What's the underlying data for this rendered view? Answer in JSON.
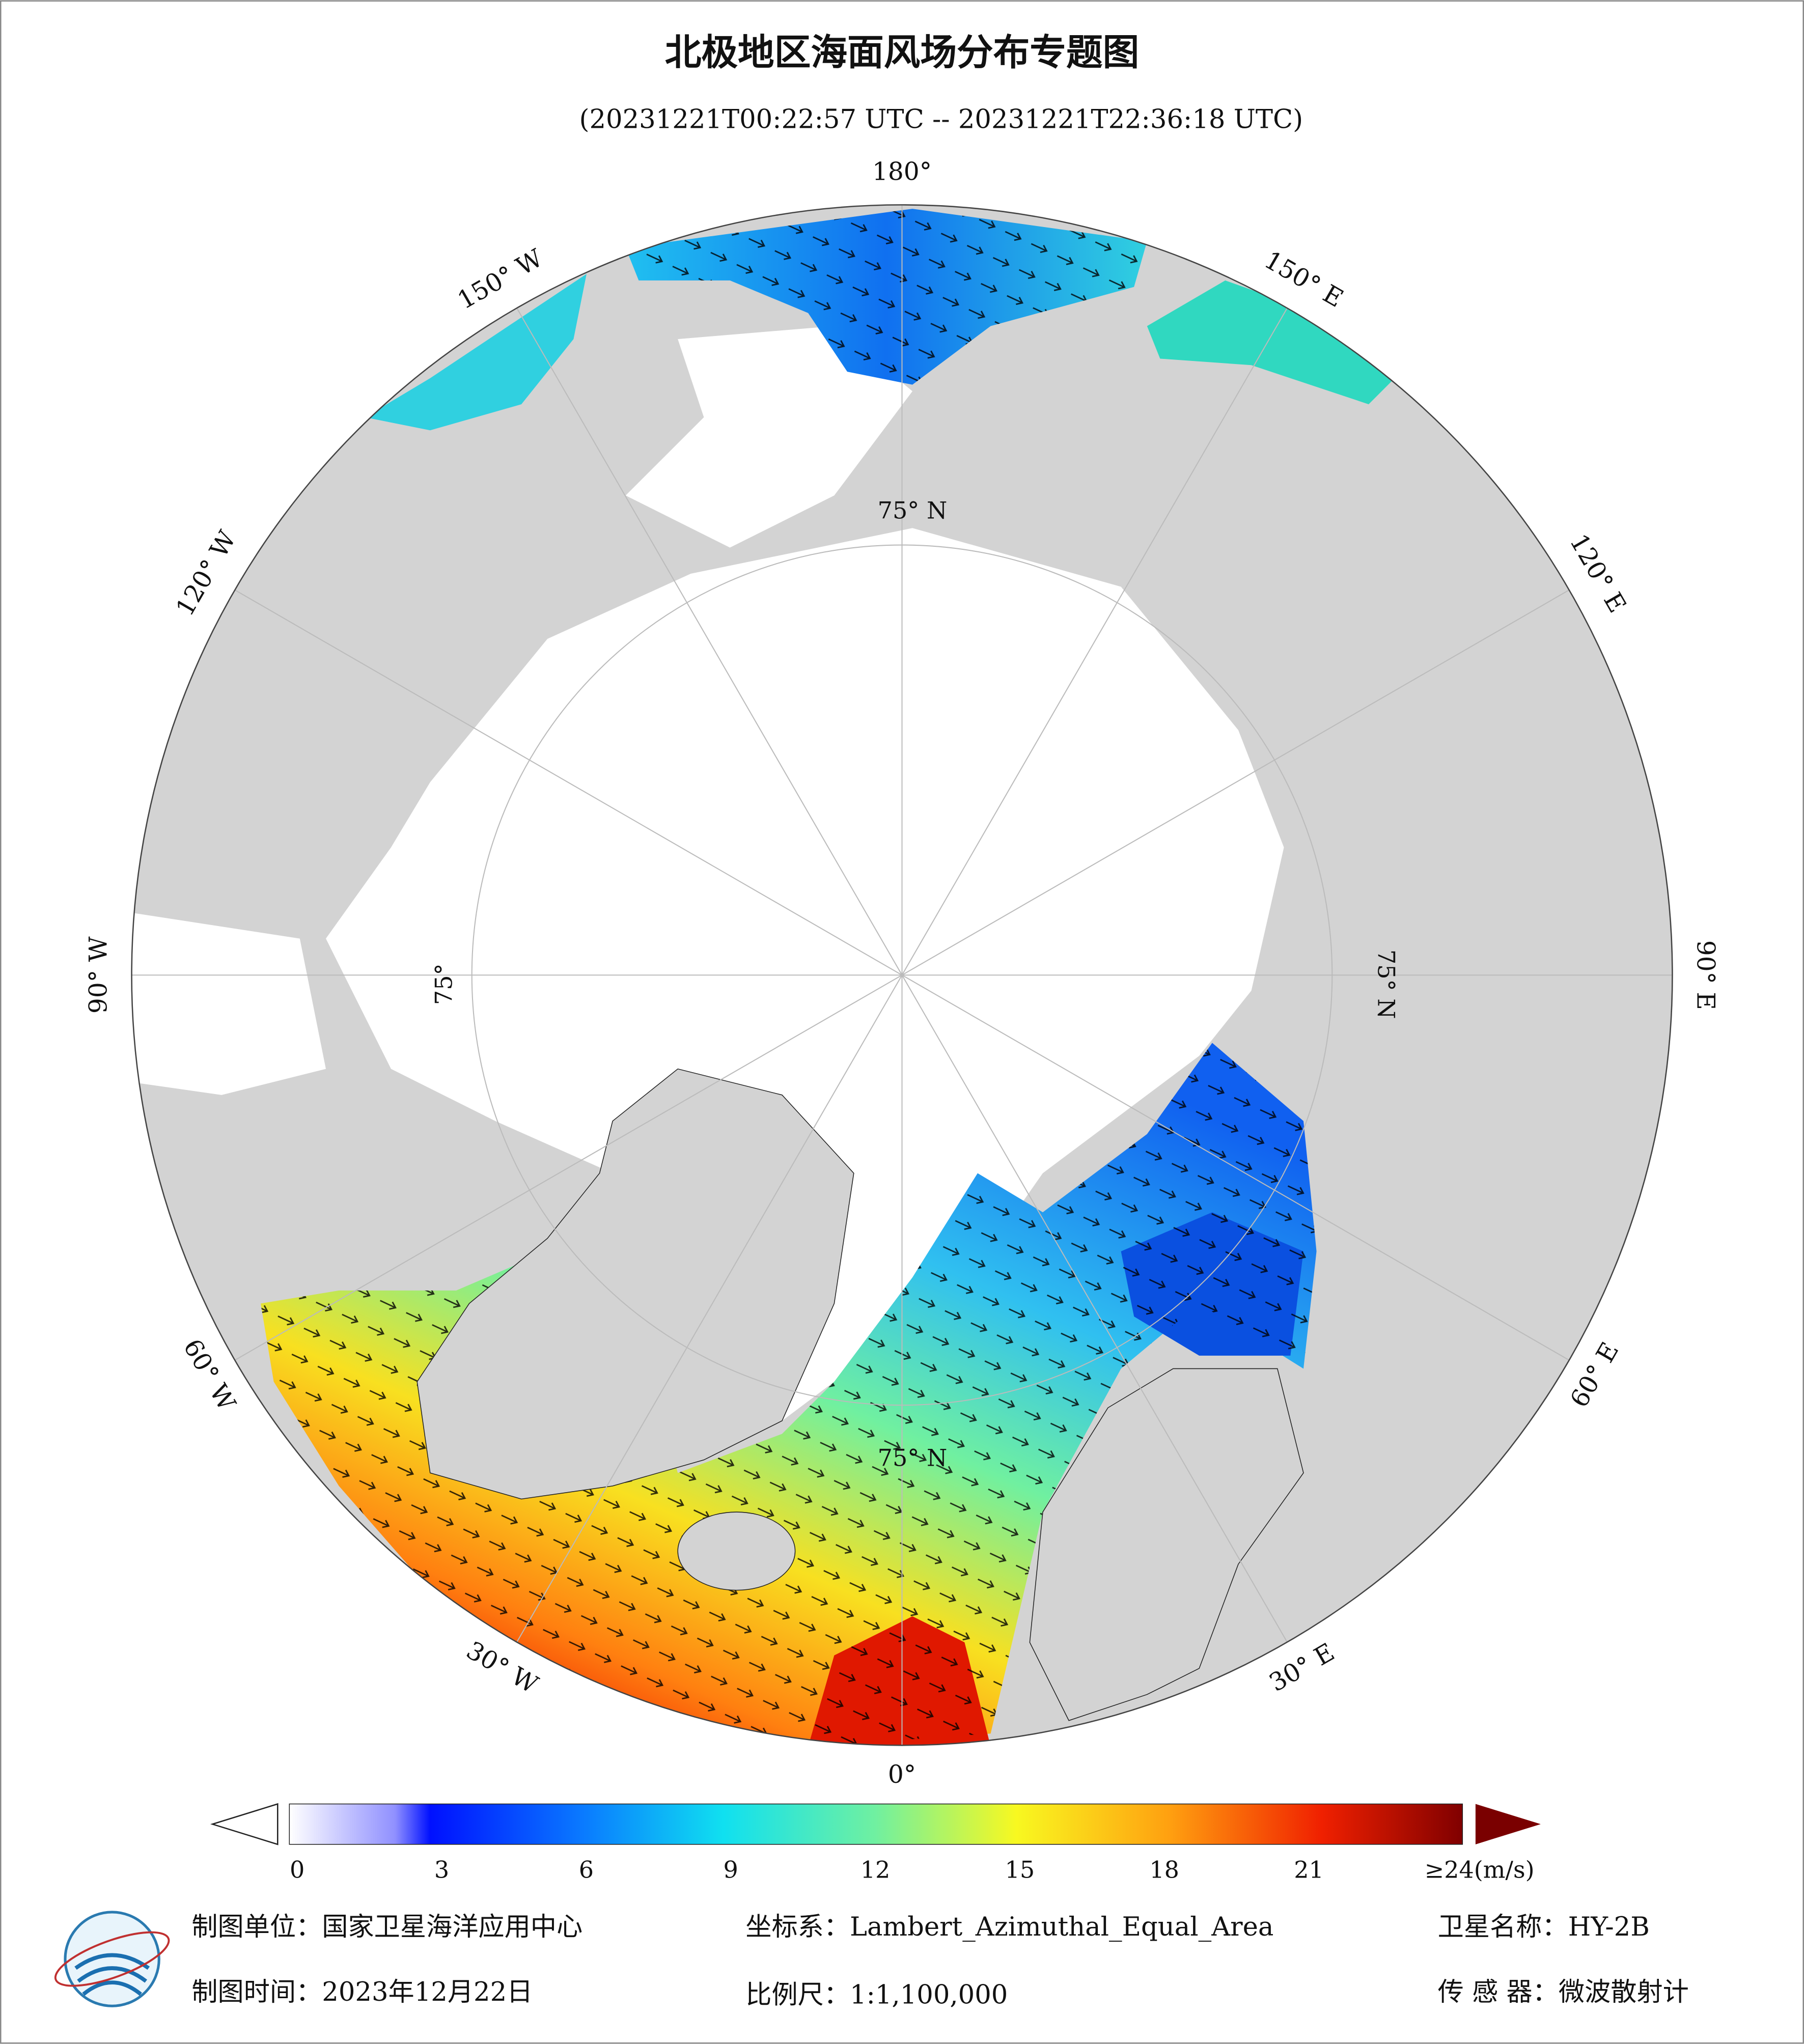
{
  "header": {
    "title": "北极地区海面风场分布专题图",
    "subtitle": "(20231221T00:22:57 UTC -- 20231221T22:36:18 UTC)"
  },
  "map": {
    "lon_labels": [
      "180°",
      "150° E",
      "120° E",
      "90° E",
      "60° E",
      "30° E",
      "0°",
      "30° W",
      "60° W",
      "90° W",
      "120° W",
      "150° W"
    ],
    "lat_labels": [
      "75° N",
      "75° N",
      "75° N",
      "75°"
    ]
  },
  "colorbar": {
    "range": [
      0,
      24
    ],
    "ticks": [
      0,
      3,
      6,
      9,
      12,
      15,
      18,
      21,
      {
        "value": 24,
        "label": "≥24(m/s)"
      }
    ]
  },
  "footer": {
    "unit": "制图单位：国家卫星海洋应用中心",
    "crs": "坐标系：Lambert_Azimuthal_Equal_Area",
    "satellite": "卫星名称：HY-2B",
    "date": "制图时间：2023年12月22日",
    "scale": "比例尺：1:1,100,000",
    "sensor": "传 感 器：微波散射计"
  }
}
